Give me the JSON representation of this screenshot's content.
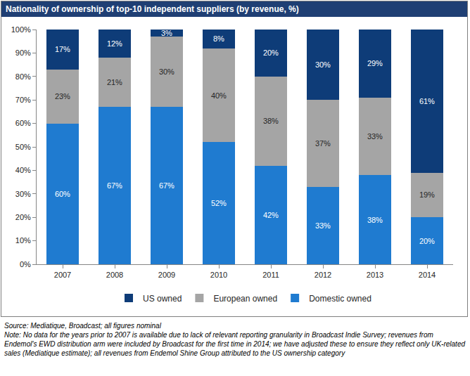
{
  "chart_data": {
    "type": "bar",
    "title": "Nationality of ownership of top-10 independent suppliers (by revenue, %)",
    "categories": [
      "2007",
      "2008",
      "2009",
      "2010",
      "2011",
      "2012",
      "2013",
      "2014"
    ],
    "series": [
      {
        "name": "Domestic owned",
        "color": "#1f7bd0",
        "values": [
          60,
          67,
          67,
          52,
          42,
          33,
          38,
          20
        ],
        "value_labels": [
          "60%",
          "67%",
          "67%",
          "52%",
          "42%",
          "33%",
          "38%",
          "20%"
        ]
      },
      {
        "name": "European owned",
        "color": "#a5a5a5",
        "values": [
          23,
          21,
          30,
          40,
          38,
          37,
          33,
          19
        ],
        "value_labels": [
          "23%",
          "21%",
          "30%",
          "40%",
          "38%",
          "37%",
          "33%",
          "19%"
        ]
      },
      {
        "name": "US owned",
        "color": "#0e3c78",
        "values": [
          17,
          12,
          3,
          8,
          20,
          30,
          29,
          61
        ],
        "value_labels": [
          "17%",
          "12%",
          "3%",
          "8%",
          "20%",
          "30%",
          "29%",
          "61%"
        ]
      }
    ],
    "ylim": [
      0,
      100
    ],
    "yticks": [
      {
        "value": 0,
        "label": "0%"
      },
      {
        "value": 10,
        "label": "10%"
      },
      {
        "value": 20,
        "label": "20%"
      },
      {
        "value": 30,
        "label": "30%"
      },
      {
        "value": 40,
        "label": "40%"
      },
      {
        "value": 50,
        "label": "50%"
      },
      {
        "value": 60,
        "label": "60%"
      },
      {
        "value": 70,
        "label": "70%"
      },
      {
        "value": 80,
        "label": "80%"
      },
      {
        "value": 90,
        "label": "90%"
      },
      {
        "value": 100,
        "label": "100%"
      }
    ],
    "stacked": true,
    "data_labels": true,
    "grid": false,
    "legend": "bottom",
    "annotations": [
      "Source: Mediatique, Broadcast; all figures nominal",
      "Note: No data for the years prior to 2007  is available due to  lack of relevant reporting granularity in Broadcast Indie Survey; revenues from Endemol's EWD distribution arm were included by Broadcast for the first time in 2014; we have adjusted these to ensure they reflect only UK-related sales (Mediatique estimate); all revenues from Endemol Shine Group attributed to the US ownership category"
    ]
  }
}
